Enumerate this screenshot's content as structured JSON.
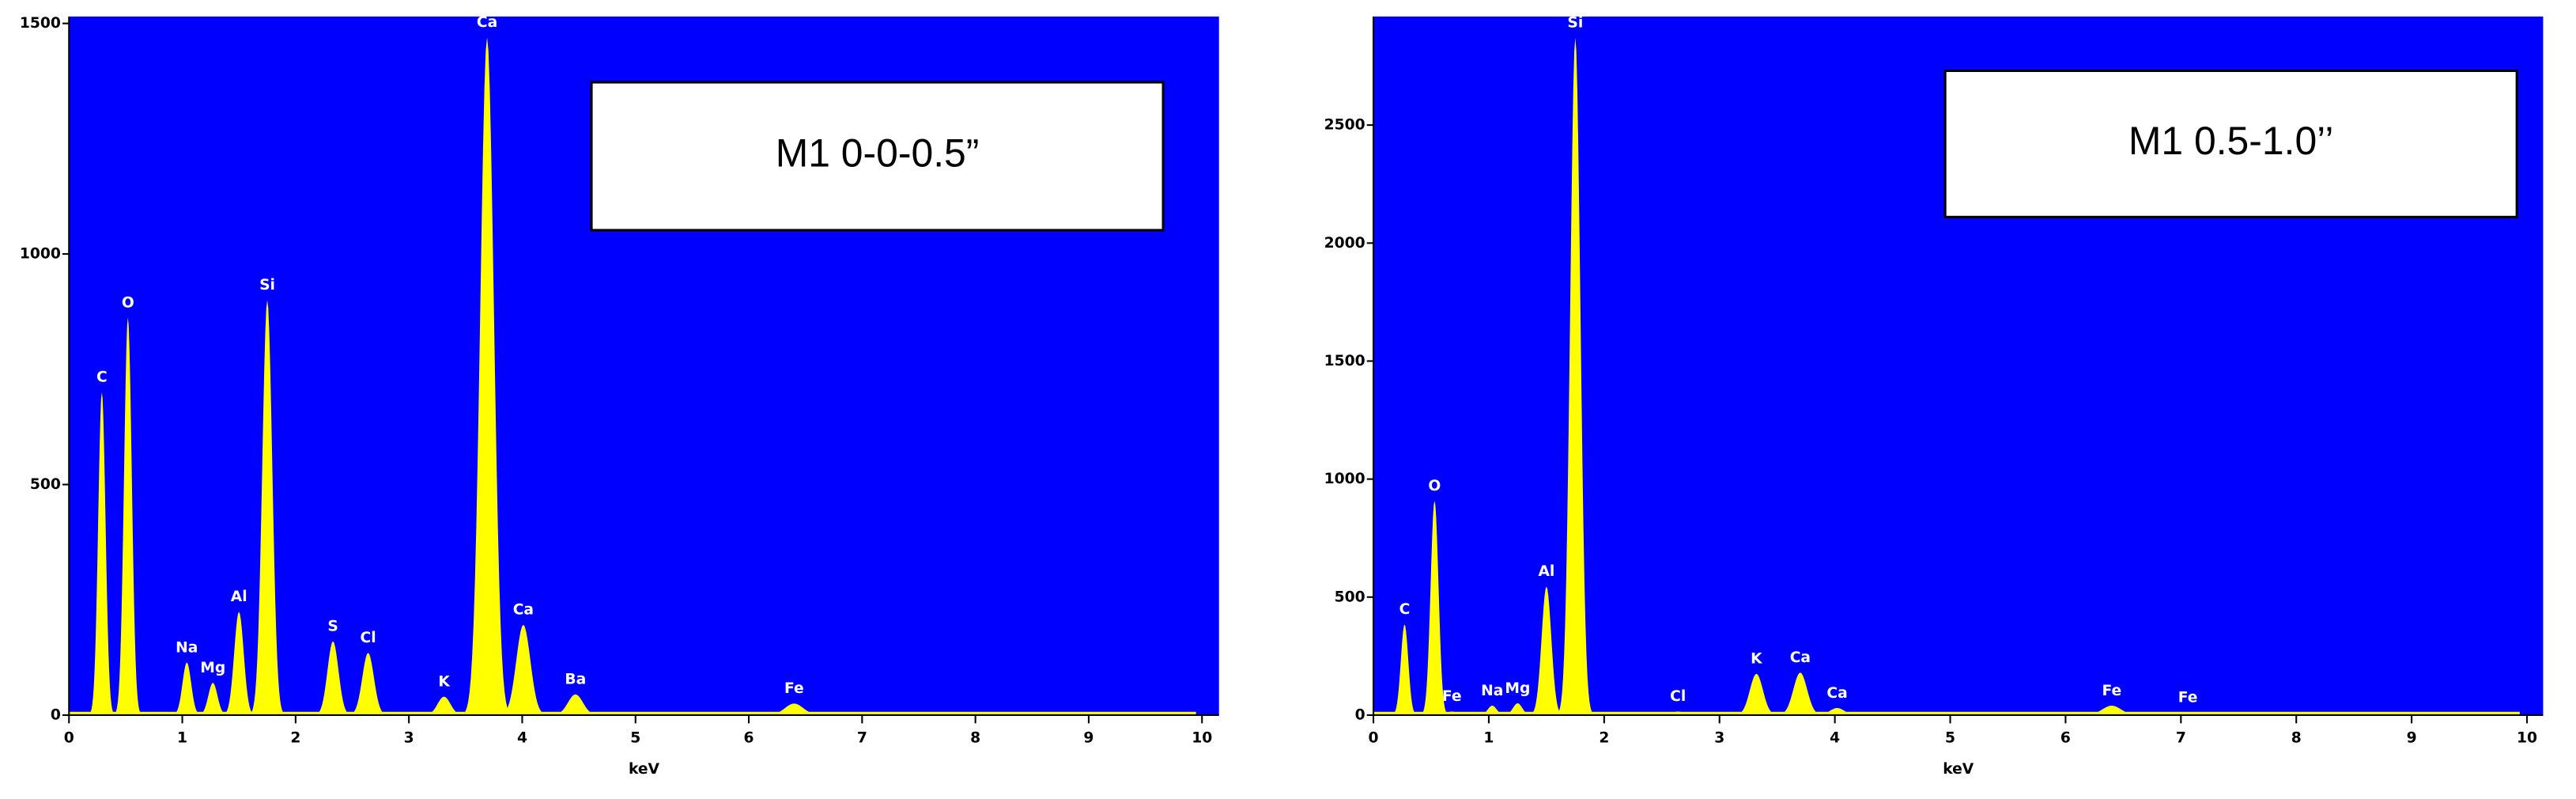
{
  "chart_data": [
    {
      "type": "spectrum",
      "title": "M1 0-0-0.5”",
      "xlabel": "keV",
      "color": "#ffff00",
      "background": "#0000ff",
      "x": [
        0.29,
        0.52,
        1.04,
        1.27,
        1.5,
        1.75,
        2.33,
        2.64,
        3.31,
        3.69,
        4.01,
        4.47,
        6.4
      ],
      "values": [
        700,
        862,
        114,
        70,
        224,
        900,
        160,
        135,
        40,
        1470,
        196,
        45,
        25
      ],
      "peak_labels": [
        "C",
        "O",
        "Na",
        "Mg",
        "Al",
        "Si",
        "S",
        "Cl",
        "K",
        "Ca",
        "Ca",
        "Ba",
        "Fe"
      ],
      "xlim": [
        0,
        10.15
      ],
      "xticks": [
        0,
        1,
        2,
        3,
        4,
        5,
        6,
        7,
        8,
        9,
        10
      ],
      "ylim": [
        0,
        1515
      ],
      "yticks": [
        0,
        500,
        1000,
        1500
      ]
    },
    {
      "type": "spectrum",
      "title": "M1 0.5-1.0’’",
      "xlabel": "keV",
      "color": "#ffff00",
      "background": "#0000ff",
      "x": [
        0.27,
        0.53,
        0.68,
        1.03,
        1.25,
        1.5,
        1.75,
        2.64,
        3.32,
        3.7,
        4.02,
        6.4,
        7.06
      ],
      "values": [
        384,
        908,
        15,
        40,
        50,
        545,
        2870,
        15,
        175,
        180,
        30,
        40,
        10
      ],
      "peak_labels": [
        "C",
        "O",
        "Fe",
        "Na",
        "Mg",
        "Al",
        "Si",
        "Cl",
        "K",
        "Ca",
        "Ca",
        "Fe",
        "Fe"
      ],
      "xlim": [
        0,
        10.14
      ],
      "xticks": [
        0,
        1,
        2,
        3,
        4,
        5,
        6,
        7,
        8,
        9,
        10
      ],
      "ylim": [
        0,
        2960
      ],
      "yticks": [
        0,
        500,
        1000,
        1500,
        2000,
        2500
      ]
    }
  ]
}
